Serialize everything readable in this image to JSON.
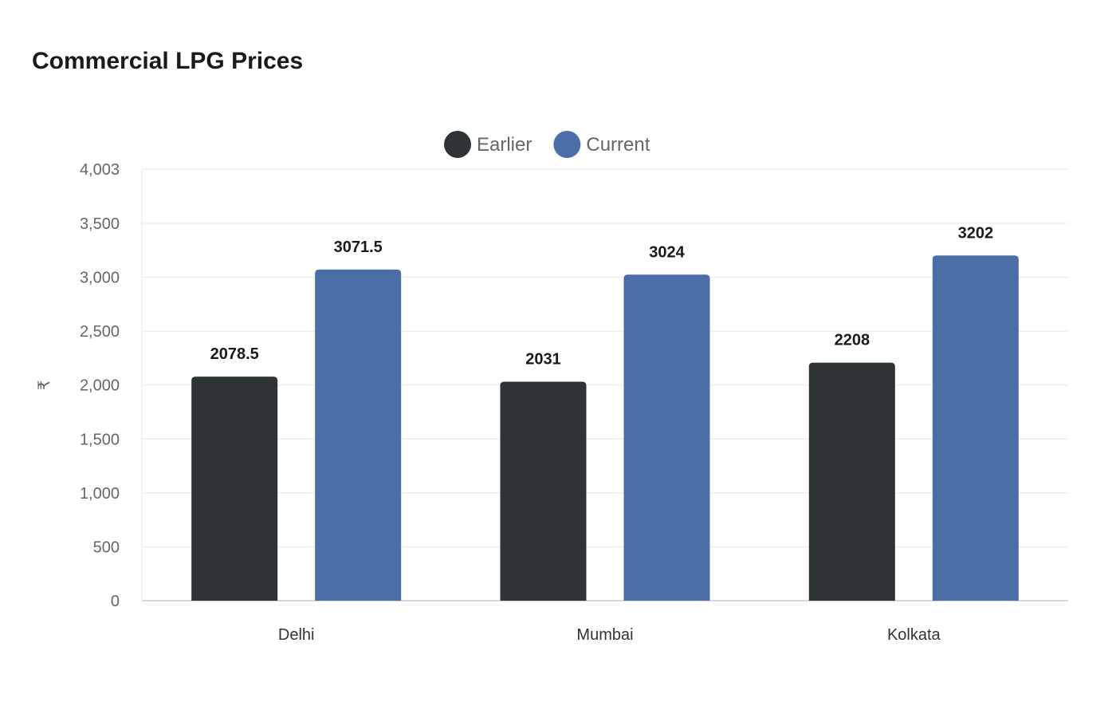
{
  "chart_data": {
    "type": "bar",
    "title": "Commercial LPG Prices",
    "ylabel": "₹",
    "xlabel": "",
    "categories": [
      "Delhi",
      "Mumbai",
      "Kolkata"
    ],
    "series": [
      {
        "name": "Earlier",
        "color": "#2e3436",
        "values": [
          2078.5,
          2031,
          2208
        ]
      },
      {
        "name": "Current",
        "color": "#4a6ea5",
        "values": [
          3071.5,
          3024,
          3202
        ]
      }
    ],
    "ylim": [
      0,
      4003
    ],
    "yticks": [
      0,
      500,
      1000,
      1500,
      2000,
      2500,
      3000,
      3500,
      4003
    ],
    "ytick_labels": [
      "0",
      "500",
      "1,000",
      "1,500",
      "2,000",
      "2,500",
      "3,000",
      "3,500",
      "4,003"
    ],
    "grid": true,
    "legend_position": "top-center"
  }
}
